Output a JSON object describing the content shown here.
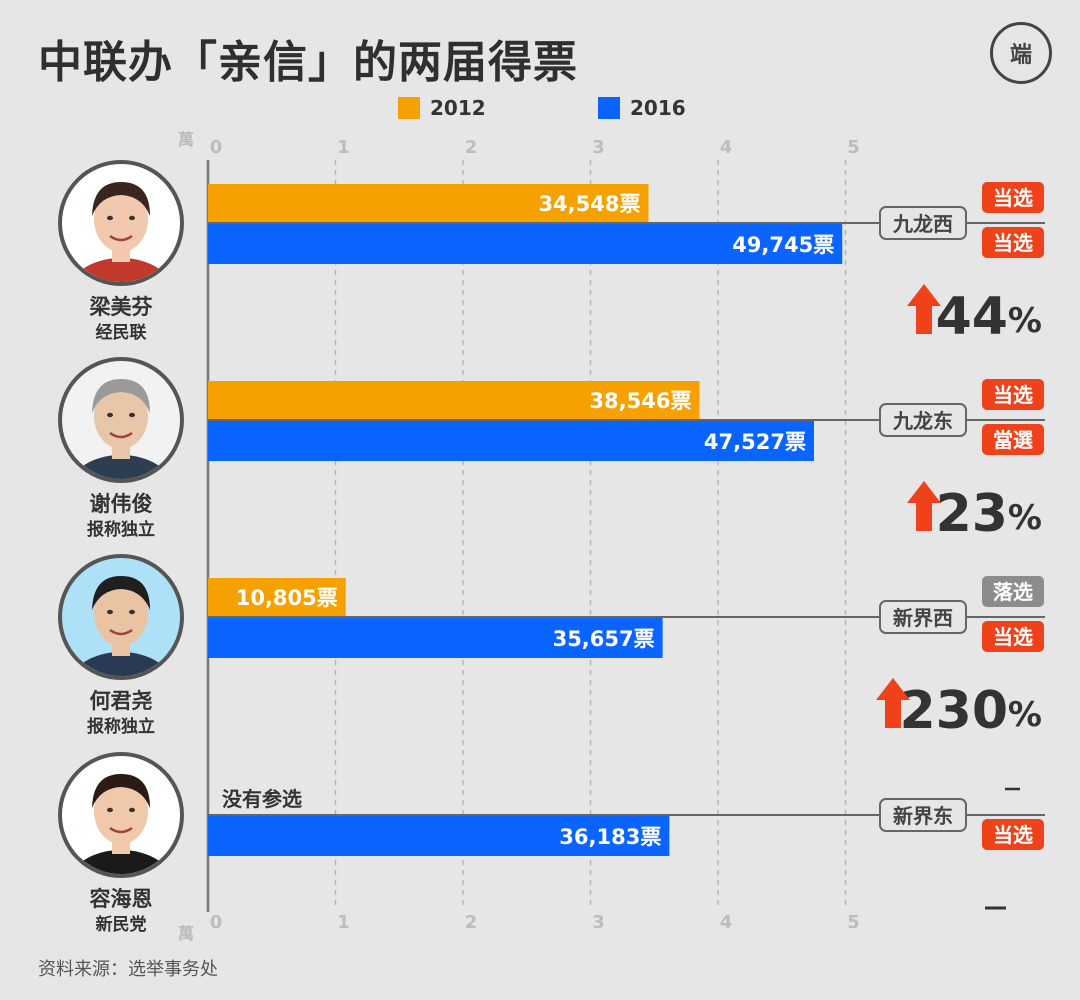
{
  "title": "中联办「亲信」的两届得票",
  "logo_text": "端",
  "unit_label": "萬",
  "source": "资料来源：选举事务处",
  "colors": {
    "y2012": "#f7a100",
    "y2016": "#0a64ff",
    "elected": "#f0421a",
    "lost": "#8c8c8c",
    "arrow": "#f0421a"
  },
  "candidates": [
    {
      "name": "梁美芬",
      "party": "经民联",
      "skin": "#f2c9ae",
      "hair": "#3a2620",
      "bg": "#ffffff",
      "shirt": "#c0392b"
    },
    {
      "name": "谢伟俊",
      "party": "报称独立",
      "skin": "#e8c6a8",
      "hair": "#9a9a9a",
      "bg": "#f2f2f2",
      "shirt": "#2c3e50"
    },
    {
      "name": "何君尧",
      "party": "报称独立",
      "skin": "#eac4a2",
      "hair": "#1f1f1f",
      "bg": "#aee0f7",
      "shirt": "#2a3a55"
    },
    {
      "name": "容海恩",
      "party": "新民党",
      "skin": "#f0c8aa",
      "hair": "#2b1b14",
      "bg": "#ffffff",
      "shirt": "#1a1a1a"
    }
  ],
  "chart_data": {
    "type": "bar",
    "orientation": "horizontal",
    "title": "中联办「亲信」的两届得票",
    "unit": "萬",
    "xlim": [
      0,
      5
    ],
    "x_ticks": [
      "0",
      "1",
      "2",
      "3",
      "4",
      "5"
    ],
    "grid": true,
    "legend_position": "top",
    "categories": [
      "梁美芬",
      "谢伟俊",
      "何君尧",
      "容海恩"
    ],
    "series": [
      {
        "name": "2012",
        "values": [
          34548,
          38546,
          10805,
          null
        ],
        "labels": [
          "34,548票",
          "38,546票",
          "10,805票",
          "没有参选"
        ]
      },
      {
        "name": "2016",
        "values": [
          49745,
          47527,
          35657,
          36183
        ],
        "labels": [
          "49,745票",
          "47,527票",
          "35,657票",
          "36,183票"
        ]
      }
    ],
    "districts": [
      "九龙西",
      "九龙东",
      "新界西",
      "新界东"
    ],
    "result_2012": [
      "当选",
      "当选",
      "落选",
      "—"
    ],
    "result_2016": [
      "当选",
      "當選",
      "当选",
      "当选"
    ],
    "change_pct": [
      "44",
      "23",
      "230",
      "—"
    ],
    "change_suffix": "%"
  }
}
